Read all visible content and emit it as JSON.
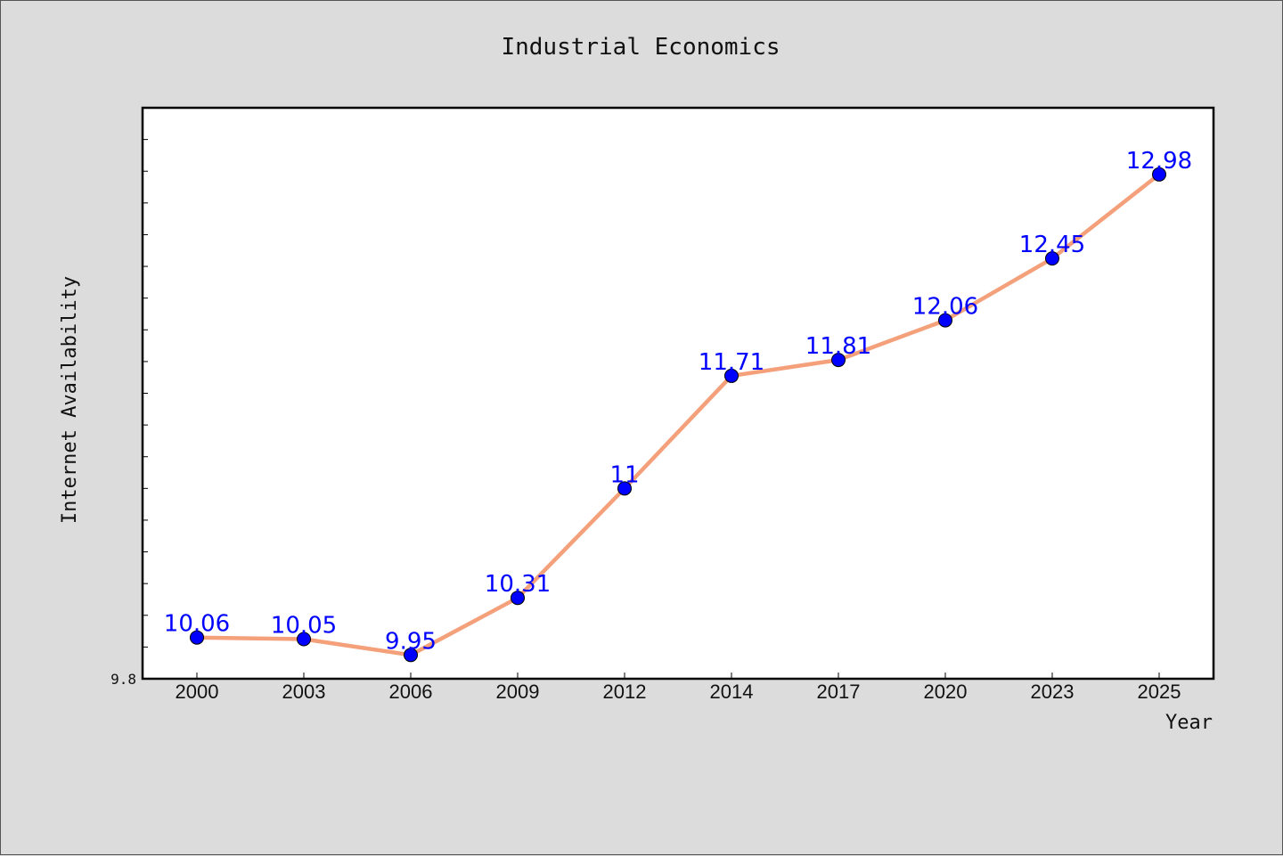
{
  "chart_data": {
    "type": "line",
    "title": "Industrial Economics",
    "xlabel": "Year",
    "ylabel": "Internet Availability",
    "categories": [
      "2000",
      "2003",
      "2006",
      "2009",
      "2012",
      "2014",
      "2017",
      "2020",
      "2023",
      "2025"
    ],
    "series": [
      {
        "values": [
          10.06,
          10.05,
          9.95,
          10.31,
          11,
          11.71,
          11.81,
          12.06,
          12.45,
          12.98
        ],
        "labels": [
          "10.06",
          "10.05",
          "9.95",
          "10.31",
          "11",
          "11.71",
          "11.81",
          "12.06",
          "12.45",
          "12.98"
        ]
      }
    ],
    "ylim": [
      9.8,
      13.4
    ],
    "ytick_labels": [
      "9.8"
    ],
    "grid": false,
    "colors": {
      "line": "#f4a07a",
      "marker": "#0000ff",
      "data_label": "#0000ff",
      "background": "#dcdcdc",
      "plot_background": "#ffffff"
    }
  }
}
